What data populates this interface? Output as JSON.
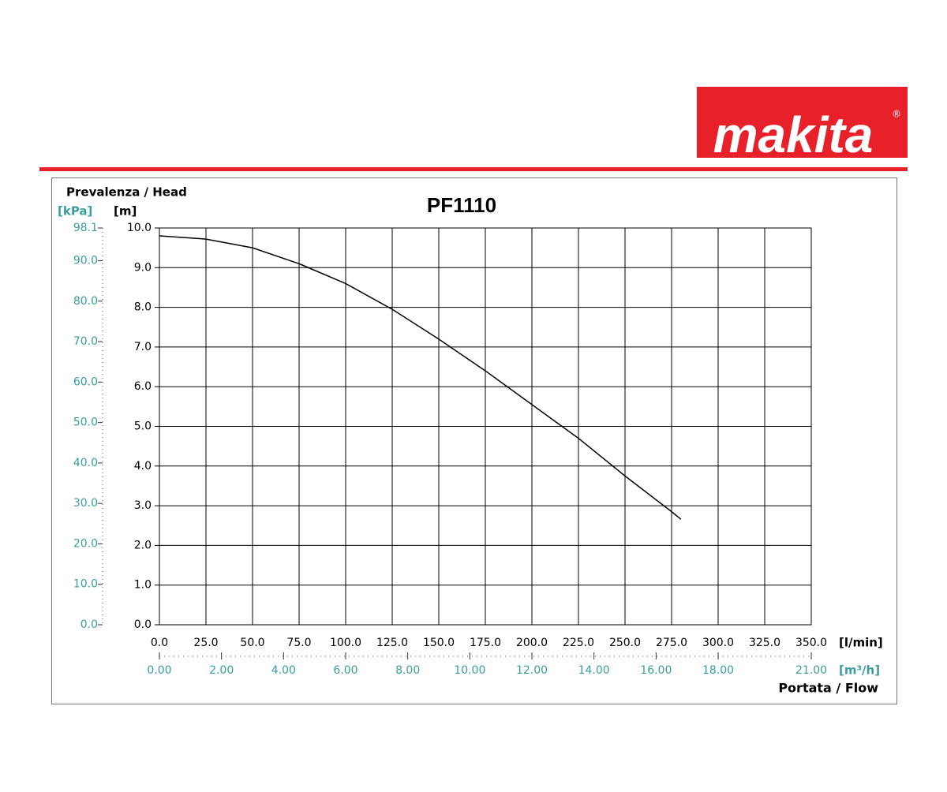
{
  "logo": "makita",
  "logo_mark": "®",
  "chart_data": {
    "type": "line",
    "title": "PF1110",
    "y_label": "Prevalenza / Head",
    "y_unit": "[m]",
    "y2_unit": "[kPa]",
    "x_unit": "[l/min]",
    "x2_unit": "[m³/h]",
    "x_label": "Portata / Flow",
    "x": [
      0,
      25,
      50,
      75,
      100,
      125,
      150,
      175,
      200,
      225,
      250,
      275,
      280
    ],
    "values": [
      9.8,
      9.72,
      9.5,
      9.1,
      8.6,
      7.95,
      7.2,
      6.4,
      5.55,
      4.7,
      3.75,
      2.85,
      2.66
    ],
    "color": "#000000",
    "grid": true,
    "xlim": [
      0,
      350
    ],
    "xticks": [
      {
        "value": 0,
        "label": "0.0"
      },
      {
        "value": 25,
        "label": "25.0"
      },
      {
        "value": 50,
        "label": "50.0"
      },
      {
        "value": 75,
        "label": "75.0"
      },
      {
        "value": 100,
        "label": "100.0"
      },
      {
        "value": 125,
        "label": "125.0"
      },
      {
        "value": 150,
        "label": "150.0"
      },
      {
        "value": 175,
        "label": "175.0"
      },
      {
        "value": 200,
        "label": "200.0"
      },
      {
        "value": 225,
        "label": "225.0"
      },
      {
        "value": 250,
        "label": "250.0"
      },
      {
        "value": 275,
        "label": "275.0"
      },
      {
        "value": 300,
        "label": "300.0"
      },
      {
        "value": 325,
        "label": "325.0"
      },
      {
        "value": 350,
        "label": "350.0"
      }
    ],
    "x2lim": [
      0,
      21
    ],
    "x2ticks": [
      {
        "value": 0,
        "label": "0.00"
      },
      {
        "value": 2,
        "label": "2.00"
      },
      {
        "value": 4,
        "label": "4.00"
      },
      {
        "value": 6,
        "label": "6.00"
      },
      {
        "value": 8,
        "label": "8.00"
      },
      {
        "value": 10,
        "label": "10.00"
      },
      {
        "value": 12,
        "label": "12.00"
      },
      {
        "value": 14,
        "label": "14.00"
      },
      {
        "value": 16,
        "label": "16.00"
      },
      {
        "value": 18,
        "label": "18.00"
      },
      {
        "value": 21,
        "label": "21.00"
      }
    ],
    "ylim": [
      0,
      10
    ],
    "yticks": [
      {
        "value": 0,
        "label": "0.0"
      },
      {
        "value": 1,
        "label": "1.0"
      },
      {
        "value": 2,
        "label": "2.0"
      },
      {
        "value": 3,
        "label": "3.0"
      },
      {
        "value": 4,
        "label": "4.0"
      },
      {
        "value": 5,
        "label": "5.0"
      },
      {
        "value": 6,
        "label": "6.0"
      },
      {
        "value": 7,
        "label": "7.0"
      },
      {
        "value": 8,
        "label": "8.0"
      },
      {
        "value": 9,
        "label": "9.0"
      },
      {
        "value": 10,
        "label": "10.0"
      }
    ],
    "y2lim": [
      0,
      98.1
    ],
    "y2ticks": [
      {
        "value": 0,
        "label": "0.0"
      },
      {
        "value": 10,
        "label": "10.0"
      },
      {
        "value": 20,
        "label": "20.0"
      },
      {
        "value": 30,
        "label": "30.0"
      },
      {
        "value": 40,
        "label": "40.0"
      },
      {
        "value": 50,
        "label": "50.0"
      },
      {
        "value": 60,
        "label": "60.0"
      },
      {
        "value": 70,
        "label": "70.0"
      },
      {
        "value": 80,
        "label": "80.0"
      },
      {
        "value": 90,
        "label": "90.0"
      },
      98.1
    ]
  }
}
